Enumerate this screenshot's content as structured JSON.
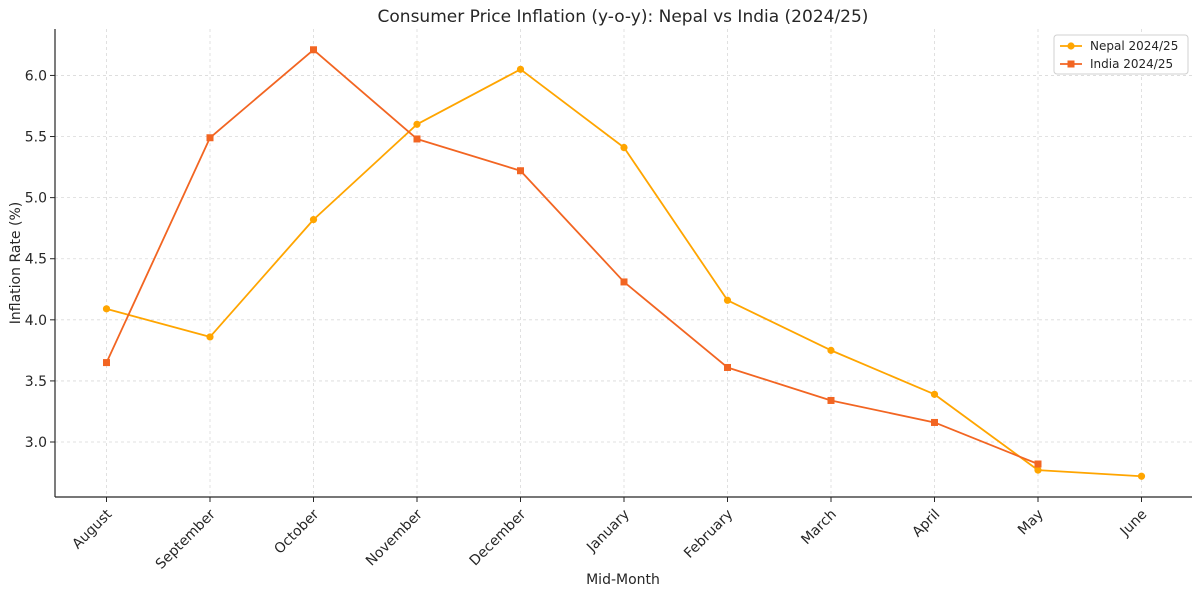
{
  "chart_data": {
    "type": "line",
    "title": "Consumer Price Inflation (y-o-y): Nepal vs India (2024/25)",
    "xlabel": "Mid-Month",
    "ylabel": "Inflation Rate (%)",
    "categories": [
      "August",
      "September",
      "October",
      "November",
      "December",
      "January",
      "February",
      "March",
      "April",
      "May",
      "June"
    ],
    "ylim": [
      2.55,
      6.38
    ],
    "yticks": [
      "3.0",
      "3.5",
      "4.0",
      "4.5",
      "5.0",
      "5.5",
      "6.0"
    ],
    "grid": true,
    "legend_position": "top-right",
    "series": [
      {
        "name": "Nepal 2024/25",
        "color": "#ffa500",
        "marker": "circle",
        "values": [
          4.09,
          3.86,
          4.82,
          5.6,
          6.05,
          5.41,
          4.16,
          3.75,
          3.39,
          2.77,
          2.72
        ]
      },
      {
        "name": "India 2024/25",
        "color": "#f26522",
        "marker": "square",
        "values": [
          3.65,
          5.49,
          6.21,
          5.48,
          5.22,
          4.31,
          3.61,
          3.34,
          3.16,
          2.82,
          null
        ]
      }
    ]
  }
}
